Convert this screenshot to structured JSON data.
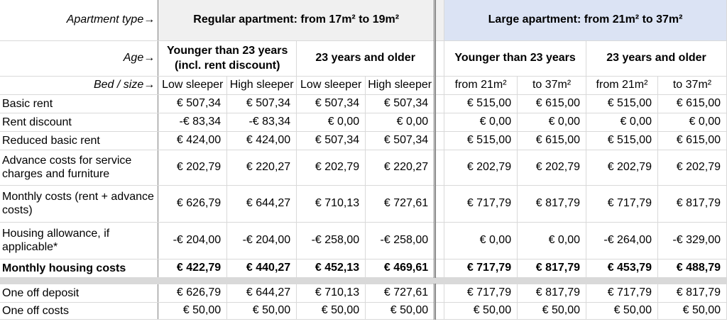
{
  "header": {
    "apartment_type_label": "Apartment type→",
    "age_label": "Age→",
    "bed_label": "Bed / size→",
    "regular_title": "Regular apartment: from 17m² to 19m²",
    "large_title": "Large apartment: from 21m² to 37m²",
    "reg_age_young": "Younger than 23 years (incl. rent discount)",
    "reg_age_old": "23 years and older",
    "lrg_age_young": "Younger than 23 years",
    "lrg_age_old": "23 years and older",
    "beds": [
      "Low sleeper",
      "High sleeper",
      "Low sleeper",
      "High sleeper",
      "from 21m²",
      "to 37m²",
      "from 21m²",
      "to 37m²"
    ]
  },
  "rows": [
    {
      "label": "Basic rent",
      "values": [
        "€ 507,34",
        "€ 507,34",
        "€ 507,34",
        "€ 507,34",
        "€ 515,00",
        "€ 615,00",
        "€ 515,00",
        "€ 615,00"
      ]
    },
    {
      "label": "Rent discount",
      "values": [
        "-€ 83,34",
        "-€ 83,34",
        "€ 0,00",
        "€ 0,00",
        "€ 0,00",
        "€ 0,00",
        "€ 0,00",
        "€ 0,00"
      ]
    },
    {
      "label": "Reduced basic rent",
      "values": [
        "€ 424,00",
        "€ 424,00",
        "€ 507,34",
        "€ 507,34",
        "€ 515,00",
        "€ 615,00",
        "€ 515,00",
        "€ 615,00"
      ]
    },
    {
      "label": "Advance costs for service charges and furniture",
      "values": [
        "€ 202,79",
        "€ 220,27",
        "€ 202,79",
        "€ 220,27",
        "€ 202,79",
        "€ 202,79",
        "€ 202,79",
        "€ 202,79"
      ]
    },
    {
      "label": "Monthly costs (rent + advance costs)",
      "values": [
        "€ 626,79",
        "€ 644,27",
        "€ 710,13",
        "€ 727,61",
        "€ 717,79",
        "€ 817,79",
        "€ 717,79",
        "€ 817,79"
      ]
    },
    {
      "label": "Housing allowance, if applicable*",
      "values": [
        "-€ 204,00",
        "-€ 204,00",
        "-€ 258,00",
        "-€ 258,00",
        "€ 0,00",
        "€ 0,00",
        "-€ 264,00",
        "-€ 329,00"
      ]
    },
    {
      "label": "Monthly housing costs",
      "values": [
        "€ 422,79",
        "€ 440,27",
        "€ 452,13",
        "€ 469,61",
        "€ 717,79",
        "€ 817,79",
        "€ 453,79",
        "€ 488,79"
      ]
    },
    {
      "label": "One off deposit",
      "values": [
        "€ 626,79",
        "€ 644,27",
        "€ 710,13",
        "€ 727,61",
        "€ 717,79",
        "€ 817,79",
        "€ 717,79",
        "€ 817,79"
      ]
    },
    {
      "label": "One off costs",
      "values": [
        "€ 50,00",
        "€ 50,00",
        "€ 50,00",
        "€ 50,00",
        "€ 50,00",
        "€ 50,00",
        "€ 50,00",
        "€ 50,00"
      ]
    }
  ]
}
